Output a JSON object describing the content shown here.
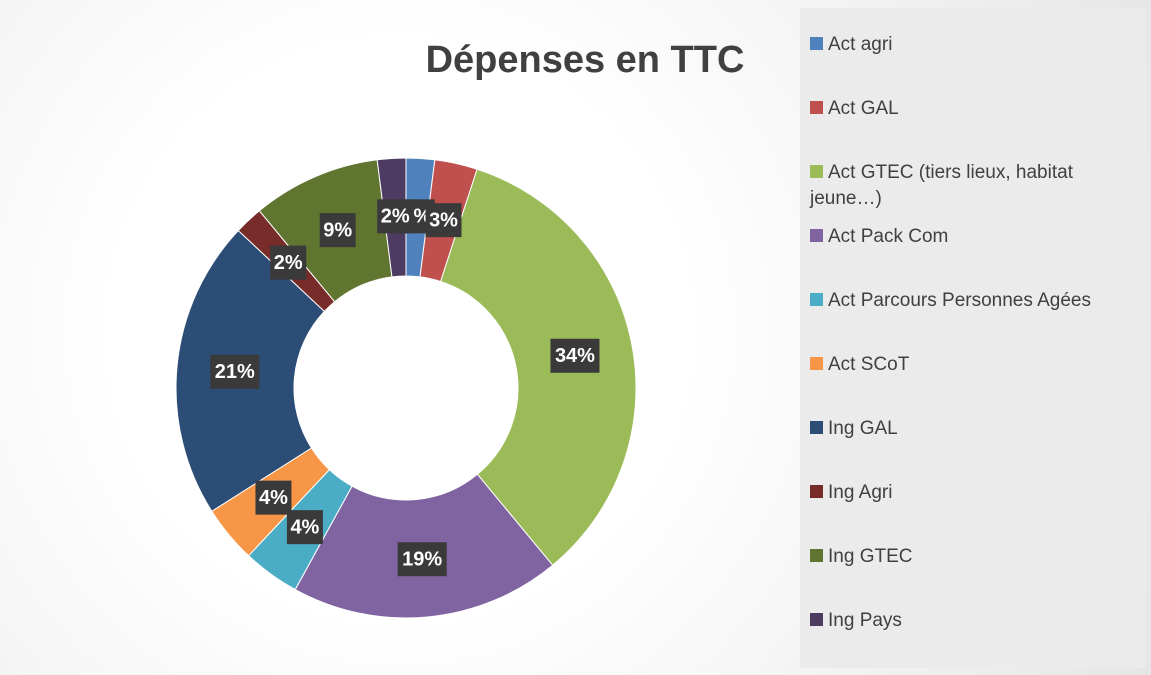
{
  "chart_data": {
    "type": "donut",
    "title": "Dépenses en TTC",
    "categories": [
      "Act agri",
      "Act GAL",
      "Act GTEC (tiers lieux, habitat jeune…)",
      "Act Pack Com",
      "Act Parcours Personnes Agées",
      "Act SCoT",
      "Ing GAL",
      "Ing Agri",
      "Ing GTEC",
      "Ing Pays"
    ],
    "values": [
      2,
      3,
      34,
      19,
      4,
      4,
      21,
      2,
      9,
      2
    ],
    "value_labels": [
      "2%",
      "3%",
      "34%",
      "19%",
      "4%",
      "4%",
      "21%",
      "2%",
      "9%",
      "2%"
    ],
    "colors": [
      "#4f81bd",
      "#c0504d",
      "#9bbb59",
      "#8064a2",
      "#4bacc6",
      "#f79646",
      "#2c4d75",
      "#772c2a",
      "#5f7530",
      "#4d3b62"
    ],
    "legend": "right"
  }
}
